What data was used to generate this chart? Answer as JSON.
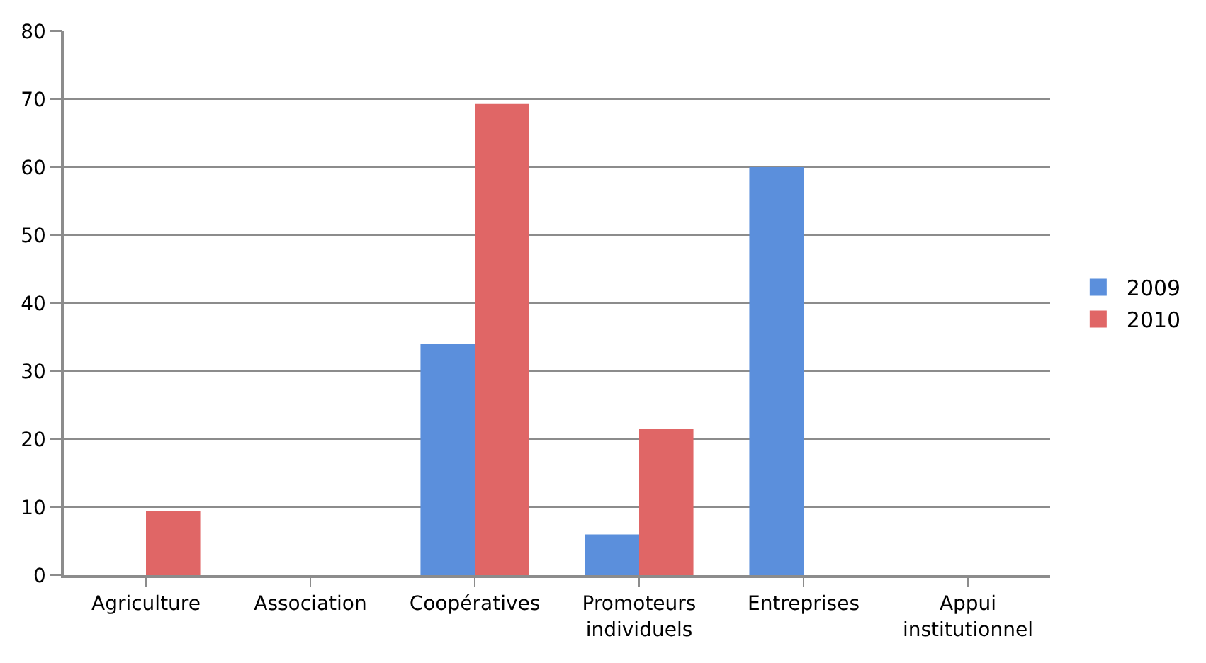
{
  "chart_data": {
    "type": "bar",
    "categories": [
      "Agriculture",
      "Association",
      "Coopératives",
      "Promoteurs individuels",
      "Entreprises",
      "Appui institutionnel"
    ],
    "series": [
      {
        "name": "2009",
        "color": "#5b8fdc",
        "values": [
          0,
          0,
          34,
          6,
          60,
          0
        ]
      },
      {
        "name": "2010",
        "color": "#e06666",
        "values": [
          9.4,
          0,
          69.3,
          21.5,
          0,
          0
        ]
      }
    ],
    "ylim": [
      0,
      80
    ],
    "yticks": [
      0,
      10,
      20,
      30,
      40,
      50,
      60,
      70,
      80
    ],
    "grid": "y",
    "legend": "right"
  }
}
